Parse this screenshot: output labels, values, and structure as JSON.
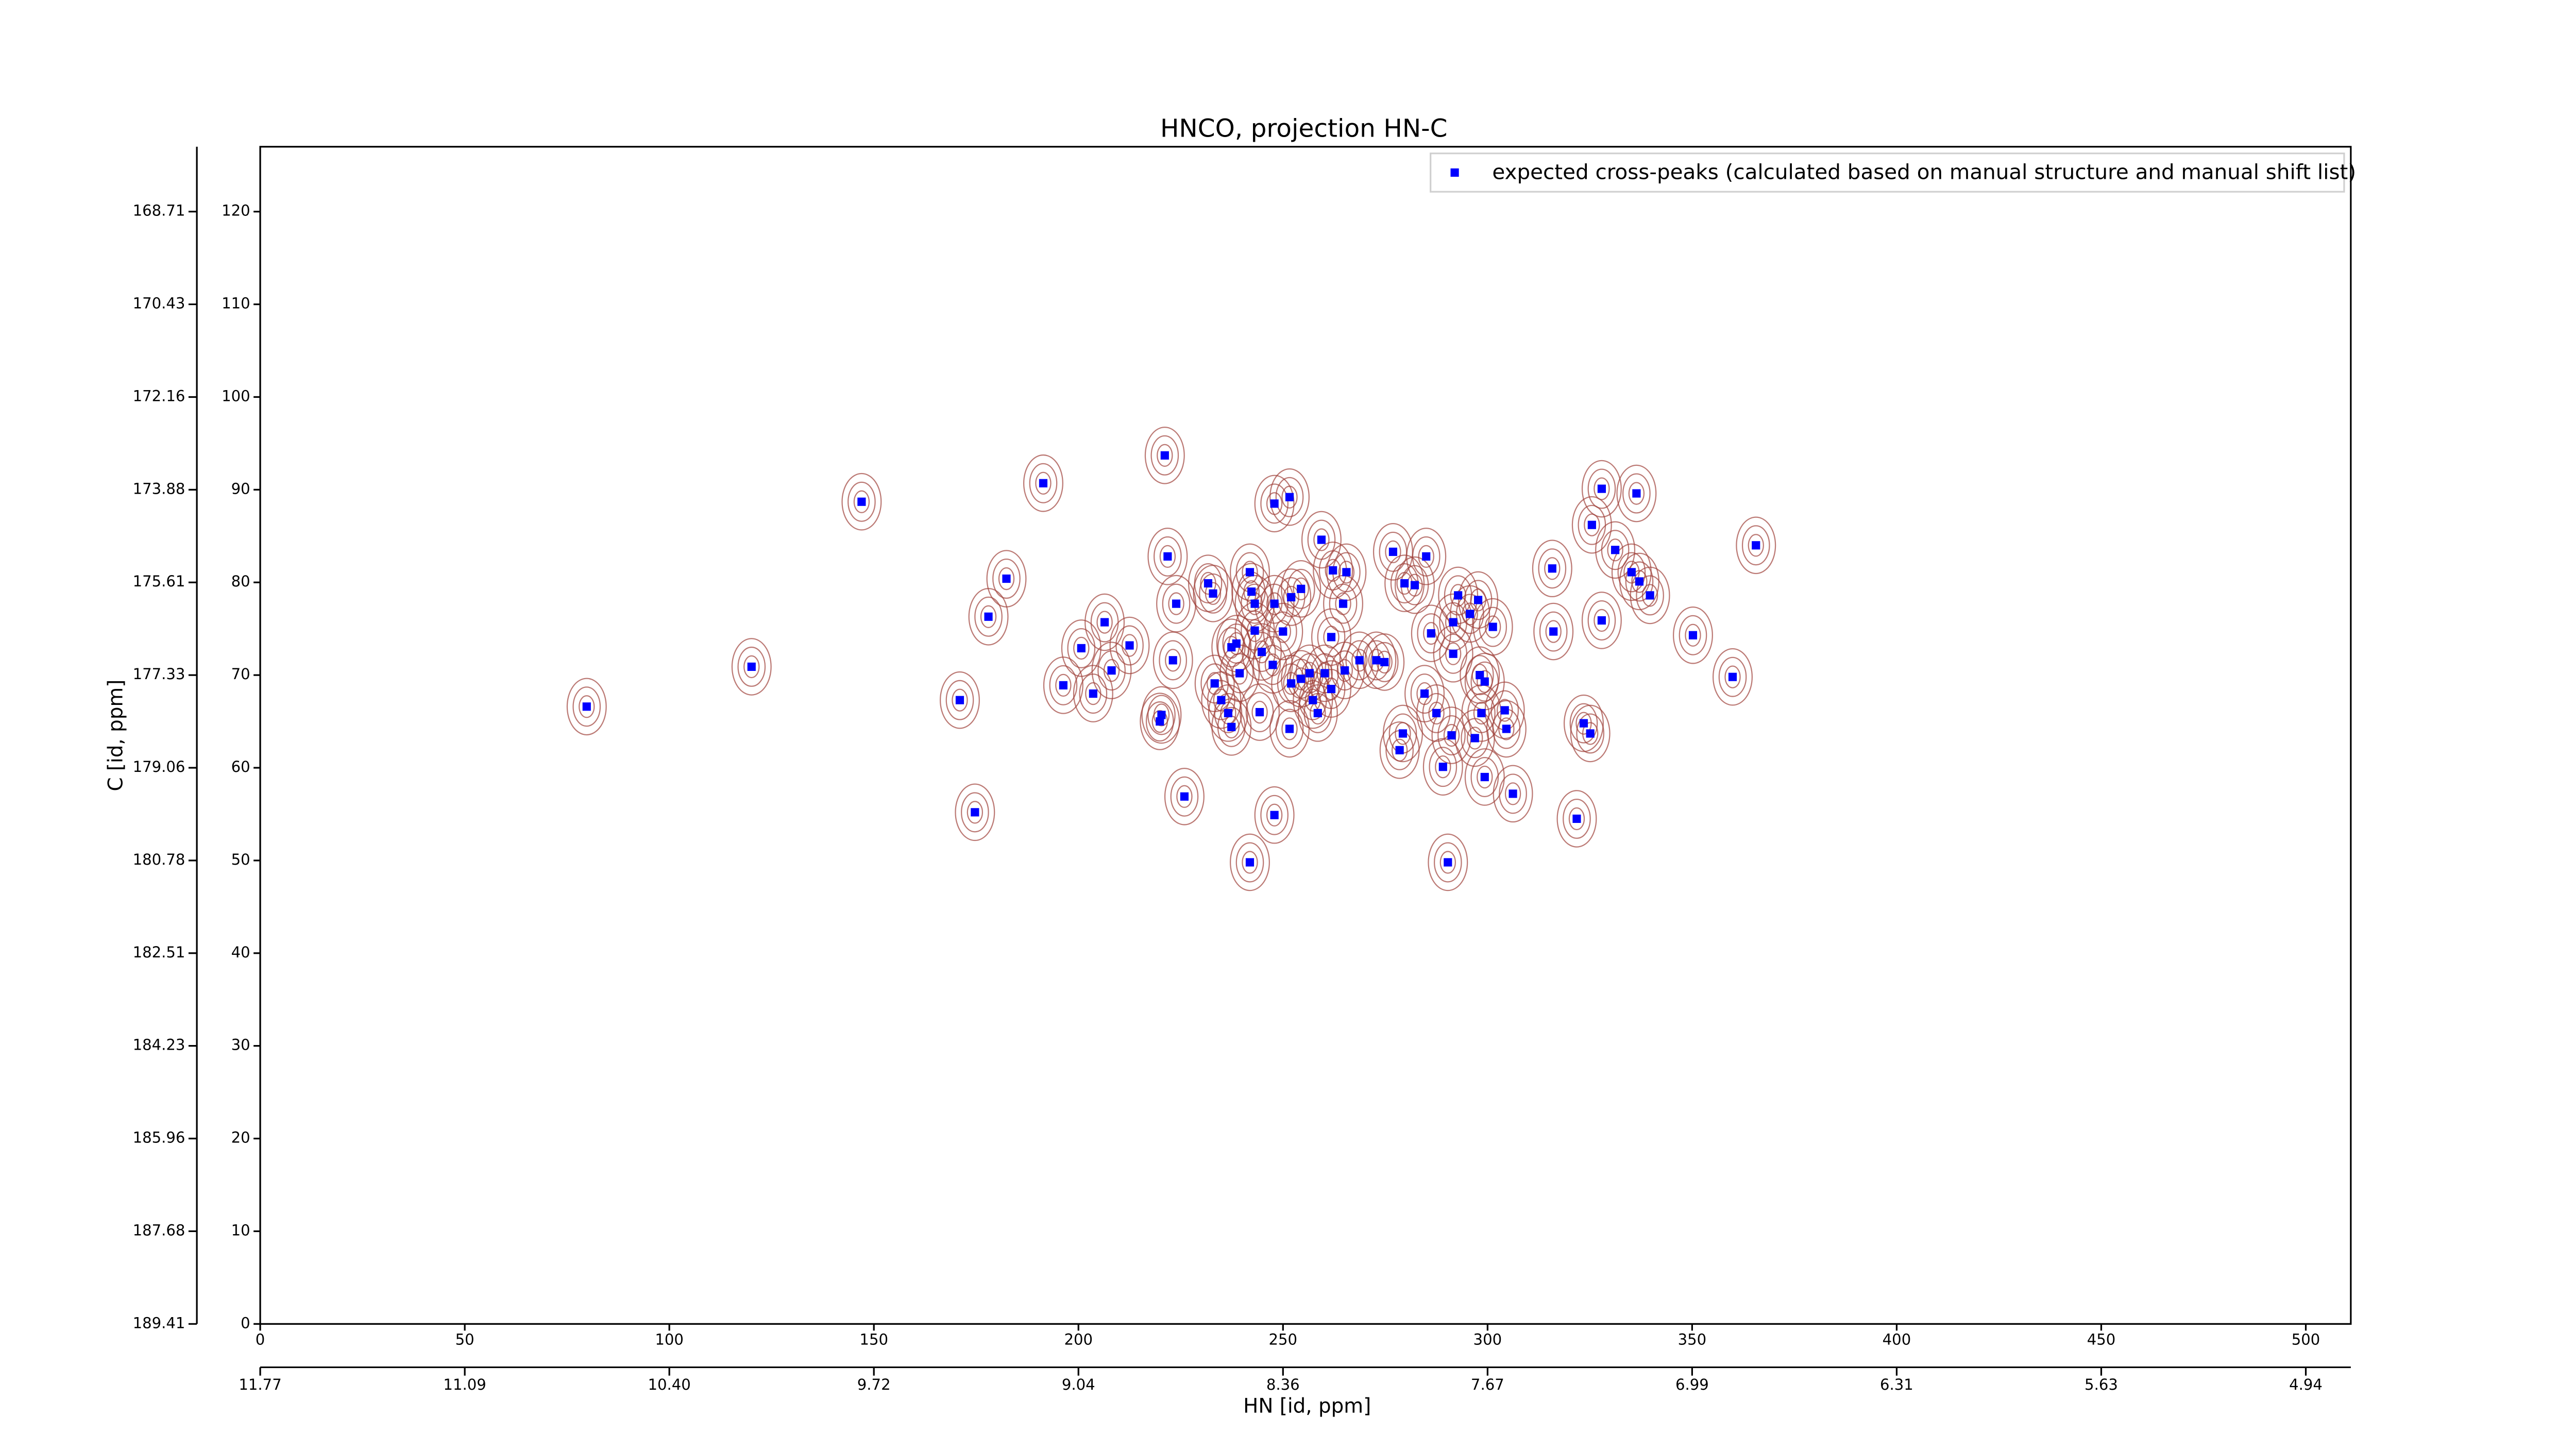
{
  "chart_data": {
    "type": "scatter",
    "title": "HNCO, projection HN-C",
    "x_label": "HN [id, ppm]",
    "y_label": "C [id, ppm]",
    "xlim": [
      0,
      511
    ],
    "ylim": [
      0,
      127
    ],
    "xticks": [
      0,
      50,
      100,
      150,
      200,
      250,
      300,
      350,
      400,
      450,
      500
    ],
    "yticks": [
      0,
      10,
      20,
      30,
      40,
      50,
      60,
      70,
      80,
      90,
      100,
      110,
      120
    ],
    "x2ticks": [
      {
        "value": 0,
        "label": "11.77"
      },
      {
        "value": 50,
        "label": "11.09"
      },
      {
        "value": 100,
        "label": "10.40"
      },
      {
        "value": 150,
        "label": "9.72"
      },
      {
        "value": 200,
        "label": "9.04"
      },
      {
        "value": 250,
        "label": "8.36"
      },
      {
        "value": 300,
        "label": "7.67"
      },
      {
        "value": 350,
        "label": "6.99"
      },
      {
        "value": 400,
        "label": "6.31"
      },
      {
        "value": 450,
        "label": "5.63"
      },
      {
        "value": 500,
        "label": "4.94"
      }
    ],
    "y2ticks": [
      {
        "value": 0,
        "label": "189.41"
      },
      {
        "value": 10,
        "label": "187.68"
      },
      {
        "value": 20,
        "label": "185.96"
      },
      {
        "value": 30,
        "label": "184.23"
      },
      {
        "value": 40,
        "label": "182.51"
      },
      {
        "value": 50,
        "label": "180.78"
      },
      {
        "value": 60,
        "label": "179.06"
      },
      {
        "value": 70,
        "label": "177.33"
      },
      {
        "value": 80,
        "label": "175.61"
      },
      {
        "value": 90,
        "label": "173.88"
      },
      {
        "value": 100,
        "label": "172.16"
      },
      {
        "value": 110,
        "label": "170.43"
      },
      {
        "value": 120,
        "label": "168.71"
      }
    ],
    "legend": "upper right",
    "series": [
      {
        "name": "expected cross-peaks (calculated based on manual structure and manual shift list)",
        "color": "#0000ff",
        "x": [
          79.8,
          120.1,
          147.0,
          191.4,
          171.0,
          174.7,
          182.4,
          178.0,
          196.3,
          200.7,
          203.6,
          206.4,
          208.1,
          212.5,
          221.1,
          221.8,
          220.3,
          219.9,
          223.9,
          223.1,
          225.9,
          231.7,
          232.9,
          233.3,
          234.9,
          236.6,
          237.4,
          237.4,
          239.4,
          238.6,
          241.9,
          242.3,
          243.1,
          243.1,
          244.8,
          241.9,
          244.3,
          247.9,
          251.6,
          247.5,
          247.9,
          247.9,
          250.0,
          252.0,
          254.4,
          251.6,
          252.0,
          254.4,
          256.5,
          257.3,
          258.5,
          259.4,
          262.2,
          265.5,
          261.8,
          260.2,
          264.7,
          265.1,
          261.8,
          268.7,
          272.8,
          274.8,
          276.9,
          279.7,
          282.2,
          285.0,
          279.3,
          278.5,
          284.6,
          286.2,
          287.5,
          289.1,
          290.3,
          291.2,
          291.6,
          292.8,
          291.6,
          295.7,
          297.7,
          296.9,
          298.1,
          298.5,
          299.3,
          299.3,
          301.3,
          304.2,
          304.6,
          306.2,
          315.8,
          316.1,
          321.8,
          323.5,
          325.1,
          325.5,
          327.9,
          327.9,
          331.2,
          335.2,
          336.4,
          337.1,
          339.7,
          350.2,
          359.9,
          365.6
        ],
        "values": [
          66.6,
          70.9,
          88.7,
          90.7,
          67.3,
          55.2,
          80.4,
          76.3,
          68.9,
          72.9,
          68.0,
          75.7,
          70.5,
          73.2,
          93.7,
          82.8,
          65.7,
          65.0,
          77.7,
          71.6,
          56.9,
          79.9,
          78.8,
          69.1,
          67.3,
          65.9,
          64.4,
          73.0,
          70.2,
          73.4,
          81.1,
          79.0,
          77.7,
          74.8,
          72.5,
          49.8,
          66.0,
          88.5,
          89.2,
          71.1,
          77.7,
          54.9,
          74.7,
          78.4,
          79.3,
          64.2,
          69.1,
          69.6,
          70.2,
          67.3,
          65.9,
          84.6,
          81.3,
          81.1,
          74.1,
          70.2,
          77.7,
          70.5,
          68.5,
          71.6,
          71.6,
          71.4,
          83.3,
          79.9,
          79.7,
          82.8,
          63.7,
          61.9,
          68.0,
          74.5,
          65.9,
          60.1,
          49.8,
          63.5,
          72.3,
          78.6,
          75.7,
          76.6,
          78.1,
          63.2,
          70.0,
          65.9,
          69.3,
          59.0,
          75.2,
          66.2,
          64.2,
          57.2,
          81.5,
          74.7,
          54.5,
          64.8,
          63.7,
          86.2,
          90.1,
          75.9,
          83.5,
          81.1,
          89.6,
          80.1,
          78.6,
          74.3,
          69.8,
          84.0
        ]
      }
    ]
  }
}
